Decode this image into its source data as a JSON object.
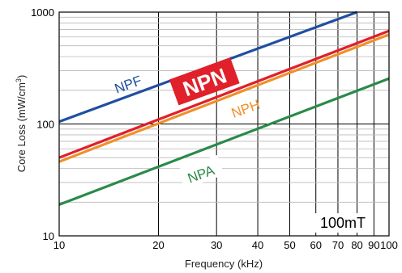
{
  "chart_data": {
    "type": "line",
    "xlabel": "Frequency (kHz)",
    "ylabel_main": "Core Loss (mW/cm",
    "ylabel_sup": "3",
    "ylabel_close": ")",
    "x_scale": "log",
    "y_scale": "log",
    "xlim": [
      10,
      100
    ],
    "ylim": [
      10,
      1000
    ],
    "x_ticks": [
      10,
      20,
      30,
      40,
      50,
      60,
      70,
      80,
      90,
      100
    ],
    "x_tick_labels": [
      "10",
      "20",
      "30",
      "40",
      "50",
      "60",
      "70",
      "80",
      "90",
      "100"
    ],
    "y_ticks": [
      10,
      100,
      1000
    ],
    "y_tick_labels": [
      "10",
      "100",
      "1000"
    ],
    "grid": true,
    "annotation": "100mT",
    "series": [
      {
        "name": "NPF",
        "color": "#1f4fa0",
        "x": [
          10,
          80
        ],
        "values": [
          105,
          1000
        ]
      },
      {
        "name": "NPN",
        "color": "#e0202a",
        "x": [
          10,
          100
        ],
        "values": [
          50,
          680
        ]
      },
      {
        "name": "NPH",
        "color": "#f0902a",
        "x": [
          10,
          100
        ],
        "values": [
          46,
          630
        ]
      },
      {
        "name": "NPA",
        "color": "#2a8a48",
        "x": [
          10,
          100
        ],
        "values": [
          19,
          255
        ]
      }
    ]
  }
}
